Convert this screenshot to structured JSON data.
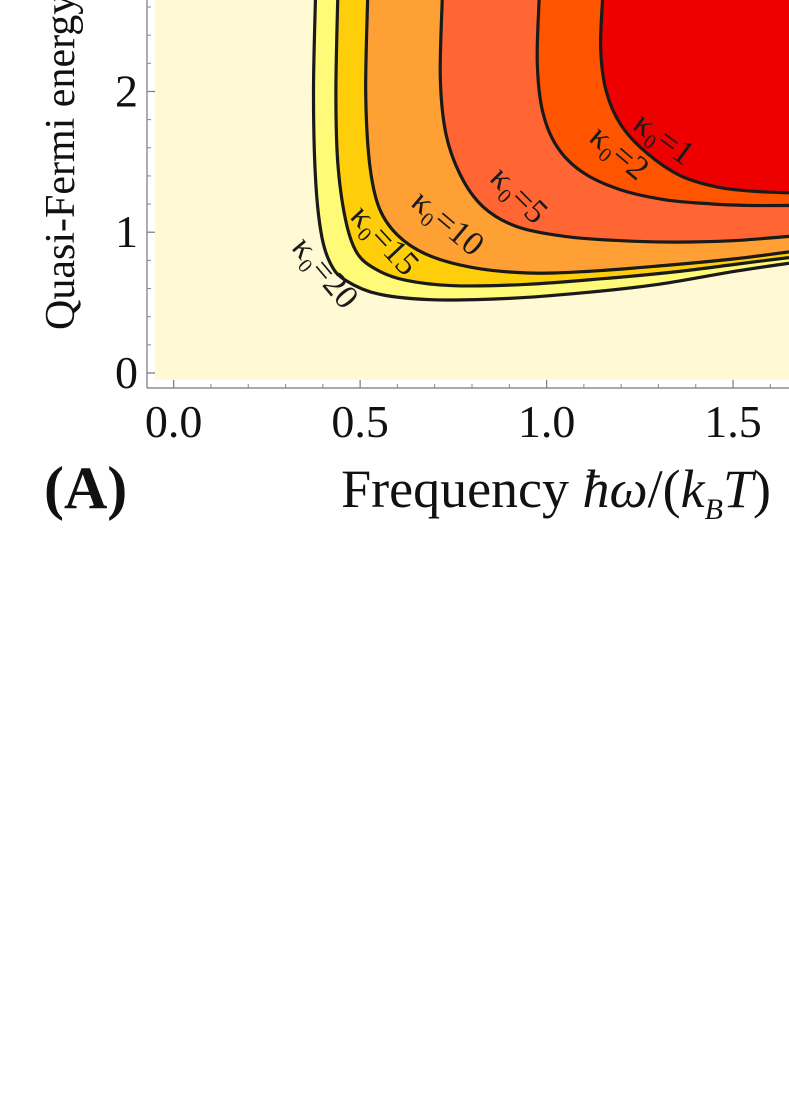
{
  "panel_label": "(A)",
  "xlabel": {
    "prefix": "Frequency ",
    "hbar": "ħ",
    "omega": "ω",
    "slash": "/(",
    "k": "k",
    "sub": "B",
    "T": "T",
    "close": ")"
  },
  "ylabel": "Quasi-Fermi energy",
  "colors": {
    "background": "#fff9d4",
    "level_20": "#fffa78",
    "level_15": "#ffce0a",
    "level_10": "#ffa035",
    "level_5": "#ff6633",
    "level_2": "#ff5500",
    "level_1": "#ee0000",
    "contour": "#1a1a1a"
  },
  "chart_data": {
    "type": "contour",
    "xlim": [
      -0.05,
      1.65
    ],
    "ylim": [
      -0.05,
      2.65
    ],
    "x_ticks": [
      "0.0",
      "0.5",
      "1.0",
      "1.5"
    ],
    "x_tick_values": [
      0.0,
      0.5,
      1.0,
      1.5
    ],
    "y_ticks": [
      "0",
      "1",
      "2"
    ],
    "y_tick_values": [
      0,
      1,
      2
    ],
    "contours": [
      {
        "label": "κ₀=20",
        "kappa": 20,
        "fill": "level_20",
        "points": [
          [
            0.38,
            2.65
          ],
          [
            0.375,
            2.0
          ],
          [
            0.38,
            1.4
          ],
          [
            0.395,
            1.0
          ],
          [
            0.42,
            0.78
          ],
          [
            0.46,
            0.66
          ],
          [
            0.55,
            0.56
          ],
          [
            0.7,
            0.52
          ],
          [
            0.9,
            0.53
          ],
          [
            1.1,
            0.57
          ],
          [
            1.3,
            0.63
          ],
          [
            1.5,
            0.72
          ],
          [
            1.65,
            0.78
          ]
        ]
      },
      {
        "label": "κ₀=15",
        "kappa": 15,
        "fill": "level_15",
        "points": [
          [
            0.44,
            2.65
          ],
          [
            0.435,
            2.0
          ],
          [
            0.44,
            1.5
          ],
          [
            0.46,
            1.1
          ],
          [
            0.49,
            0.86
          ],
          [
            0.54,
            0.74
          ],
          [
            0.62,
            0.66
          ],
          [
            0.75,
            0.62
          ],
          [
            0.95,
            0.63
          ],
          [
            1.15,
            0.67
          ],
          [
            1.35,
            0.72
          ],
          [
            1.5,
            0.77
          ],
          [
            1.65,
            0.82
          ]
        ]
      },
      {
        "label": "κ₀=10",
        "kappa": 10,
        "fill": "level_10",
        "points": [
          [
            0.52,
            2.65
          ],
          [
            0.515,
            2.0
          ],
          [
            0.525,
            1.5
          ],
          [
            0.55,
            1.18
          ],
          [
            0.6,
            0.98
          ],
          [
            0.68,
            0.84
          ],
          [
            0.8,
            0.75
          ],
          [
            0.95,
            0.71
          ],
          [
            1.1,
            0.72
          ],
          [
            1.3,
            0.76
          ],
          [
            1.5,
            0.81
          ],
          [
            1.65,
            0.86
          ]
        ]
      },
      {
        "label": "κ₀=5",
        "kappa": 5,
        "fill": "level_5",
        "points": [
          [
            0.72,
            2.65
          ],
          [
            0.715,
            2.1
          ],
          [
            0.73,
            1.7
          ],
          [
            0.77,
            1.4
          ],
          [
            0.83,
            1.18
          ],
          [
            0.92,
            1.04
          ],
          [
            1.05,
            0.97
          ],
          [
            1.2,
            0.94
          ],
          [
            1.35,
            0.93
          ],
          [
            1.5,
            0.94
          ],
          [
            1.65,
            0.97
          ]
        ]
      },
      {
        "label": "κ₀=2",
        "kappa": 2,
        "fill": "level_2",
        "points": [
          [
            0.98,
            2.65
          ],
          [
            0.975,
            2.2
          ],
          [
            0.99,
            1.85
          ],
          [
            1.03,
            1.6
          ],
          [
            1.1,
            1.42
          ],
          [
            1.2,
            1.3
          ],
          [
            1.32,
            1.23
          ],
          [
            1.45,
            1.2
          ],
          [
            1.55,
            1.19
          ],
          [
            1.65,
            1.19
          ]
        ]
      },
      {
        "label": "κ₀=1",
        "kappa": 1,
        "fill": "level_1",
        "points": [
          [
            1.15,
            2.65
          ],
          [
            1.145,
            2.3
          ],
          [
            1.16,
            2.0
          ],
          [
            1.2,
            1.76
          ],
          [
            1.27,
            1.56
          ],
          [
            1.36,
            1.4
          ],
          [
            1.46,
            1.32
          ],
          [
            1.56,
            1.29
          ],
          [
            1.65,
            1.28
          ]
        ]
      }
    ],
    "contour_labels": [
      {
        "text": "κ₀=1",
        "x": 1.31,
        "y": 1.65,
        "angle": 36
      },
      {
        "text": "κ₀=2",
        "x": 1.19,
        "y": 1.55,
        "angle": 40
      },
      {
        "text": "κ₀=5",
        "x": 0.92,
        "y": 1.25,
        "angle": 45
      },
      {
        "text": "κ₀=10",
        "x": 0.73,
        "y": 1.05,
        "angle": 40
      },
      {
        "text": "κ₀=15",
        "x": 0.56,
        "y": 0.93,
        "angle": 47
      },
      {
        "text": "κ₀=20",
        "x": 0.4,
        "y": 0.7,
        "angle": 50
      }
    ]
  }
}
